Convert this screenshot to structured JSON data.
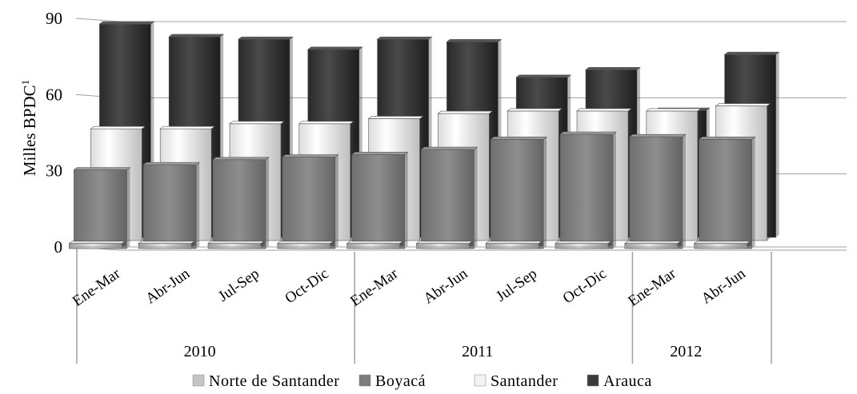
{
  "chart_data": {
    "type": "bar",
    "ylabel": "Milles BPDC",
    "ylabel_superscript": "1",
    "ylim": [
      0,
      90
    ],
    "yticks": [
      "0",
      "30",
      "60",
      "90"
    ],
    "grid": true,
    "legend_position": "bottom",
    "categories": [
      "Ene-Mar",
      "Abr-Jun",
      "Jul-Sep",
      "Oct-Dic",
      "Ene-Mar",
      "Abr-Jun",
      "Jul-Sep",
      "Oct-Dic",
      "Ene-Mar",
      "Abr-Jun"
    ],
    "groups": [
      {
        "label": "2010",
        "span": 4
      },
      {
        "label": "2011",
        "span": 4
      },
      {
        "label": "2012",
        "span": 2
      }
    ],
    "series": [
      {
        "name": "Norte de Santander",
        "color": "#c4c4c4",
        "values": [
          2,
          2,
          2,
          2,
          2,
          2,
          2,
          2,
          2,
          2
        ]
      },
      {
        "name": "Boyacá",
        "color": "#7d7d7d",
        "values": [
          31,
          33,
          35,
          36,
          37,
          39,
          43,
          45,
          44,
          43
        ]
      },
      {
        "name": "Santander",
        "color": "#f3f3f3",
        "values": [
          44,
          44,
          46,
          46,
          48,
          50,
          51,
          51,
          51,
          53
        ]
      },
      {
        "name": "Arauca",
        "color": "#3a3a3a",
        "values": [
          84,
          79,
          78,
          74,
          78,
          77,
          63,
          66,
          50,
          72
        ]
      }
    ]
  }
}
